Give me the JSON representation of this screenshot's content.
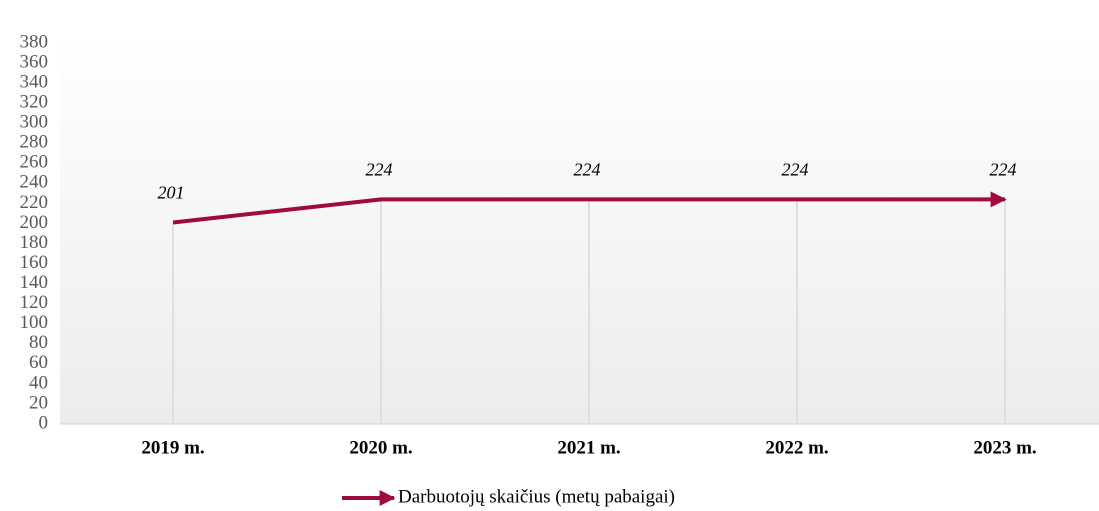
{
  "chart_data": {
    "type": "line",
    "categories": [
      "2019 m.",
      "2020 m.",
      "2021 m.",
      "2022 m.",
      "2023 m."
    ],
    "series": [
      {
        "name": "Darbuotojų skaičius (metų pabaigai)",
        "color": "#a10a3e",
        "values": [
          201,
          224,
          224,
          224,
          224
        ]
      }
    ],
    "ylim": [
      0,
      380
    ],
    "yticks": [
      0,
      20,
      40,
      60,
      80,
      100,
      120,
      140,
      160,
      180,
      200,
      220,
      240,
      260,
      280,
      300,
      320,
      340,
      360,
      380
    ],
    "data_labels": true,
    "drop_lines": true,
    "legend": "bottom"
  }
}
